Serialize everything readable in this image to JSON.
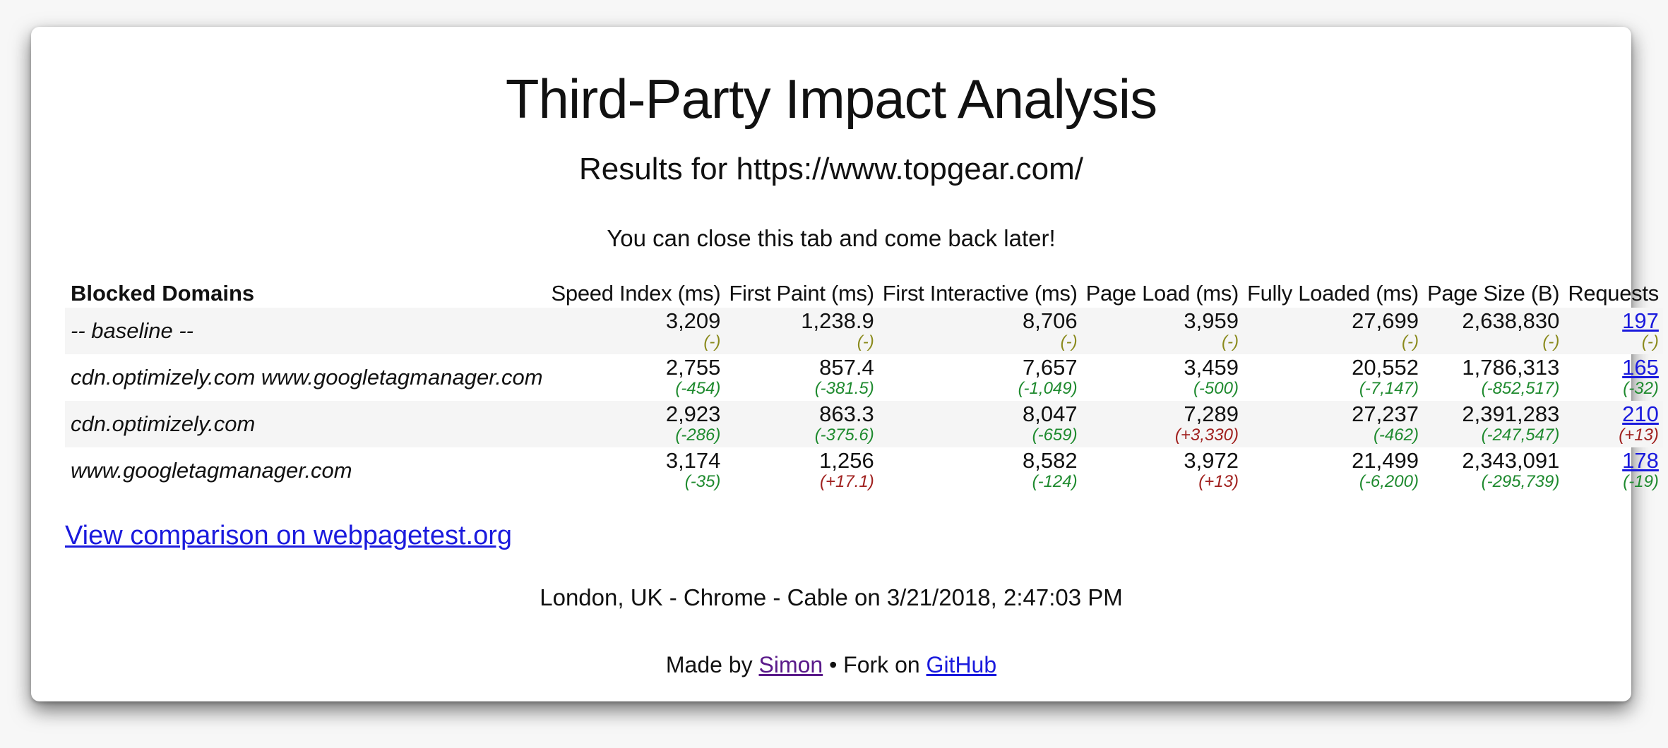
{
  "page": {
    "title": "Third-Party Impact Analysis",
    "subtitle": "Results for https://www.topgear.com/",
    "notice": "You can close this tab and come back later!"
  },
  "table": {
    "headers": {
      "domains": "Blocked Domains",
      "speed_index": "Speed Index (ms)",
      "first_paint": "First Paint (ms)",
      "first_interactive": "First Interactive (ms)",
      "page_load": "Page Load (ms)",
      "fully_loaded": "Fully Loaded (ms)",
      "page_size": "Page Size (B)",
      "requests": "Requests"
    },
    "rows": [
      {
        "domain": "-- baseline --",
        "speed_index": {
          "value": "3,209",
          "delta": "(-)"
        },
        "first_paint": {
          "value": "1,238.9",
          "delta": "(-)"
        },
        "first_interactive": {
          "value": "8,706",
          "delta": "(-)"
        },
        "page_load": {
          "value": "3,959",
          "delta": "(-)"
        },
        "fully_loaded": {
          "value": "27,699",
          "delta": "(-)"
        },
        "page_size": {
          "value": "2,638,830",
          "delta": "(-)"
        },
        "requests": {
          "value": "197",
          "delta": "(-)"
        }
      },
      {
        "domain": "cdn.optimizely.com www.googletagmanager.com",
        "speed_index": {
          "value": "2,755",
          "delta": "(-454)"
        },
        "first_paint": {
          "value": "857.4",
          "delta": "(-381.5)"
        },
        "first_interactive": {
          "value": "7,657",
          "delta": "(-1,049)"
        },
        "page_load": {
          "value": "3,459",
          "delta": "(-500)"
        },
        "fully_loaded": {
          "value": "20,552",
          "delta": "(-7,147)"
        },
        "page_size": {
          "value": "1,786,313",
          "delta": "(-852,517)"
        },
        "requests": {
          "value": "165",
          "delta": "(-32)"
        }
      },
      {
        "domain": "cdn.optimizely.com",
        "speed_index": {
          "value": "2,923",
          "delta": "(-286)"
        },
        "first_paint": {
          "value": "863.3",
          "delta": "(-375.6)"
        },
        "first_interactive": {
          "value": "8,047",
          "delta": "(-659)"
        },
        "page_load": {
          "value": "7,289",
          "delta": "(+3,330)"
        },
        "fully_loaded": {
          "value": "27,237",
          "delta": "(-462)"
        },
        "page_size": {
          "value": "2,391,283",
          "delta": "(-247,547)"
        },
        "requests": {
          "value": "210",
          "delta": "(+13)"
        }
      },
      {
        "domain": "www.googletagmanager.com",
        "speed_index": {
          "value": "3,174",
          "delta": "(-35)"
        },
        "first_paint": {
          "value": "1,256",
          "delta": "(+17.1)"
        },
        "first_interactive": {
          "value": "8,582",
          "delta": "(-124)"
        },
        "page_load": {
          "value": "3,972",
          "delta": "(+13)"
        },
        "fully_loaded": {
          "value": "21,499",
          "delta": "(-6,200)"
        },
        "page_size": {
          "value": "2,343,091",
          "delta": "(-295,739)"
        },
        "requests": {
          "value": "178",
          "delta": "(-19)"
        }
      }
    ]
  },
  "links": {
    "compare": "View comparison on webpagetest.org"
  },
  "location": "London, UK - Chrome - Cable on 3/21/2018, 2:47:03 PM",
  "footer": {
    "made_by_prefix": "Made by",
    "author": "Simon",
    "separator": "• Fork on",
    "github": "GitHub"
  },
  "colors": {
    "neutral_delta": "#8a8a1c",
    "improvement_delta": "#1e8a2e",
    "regression_delta": "#a0201e",
    "link": "#1a1add",
    "visited_link": "#5a1a8a"
  }
}
